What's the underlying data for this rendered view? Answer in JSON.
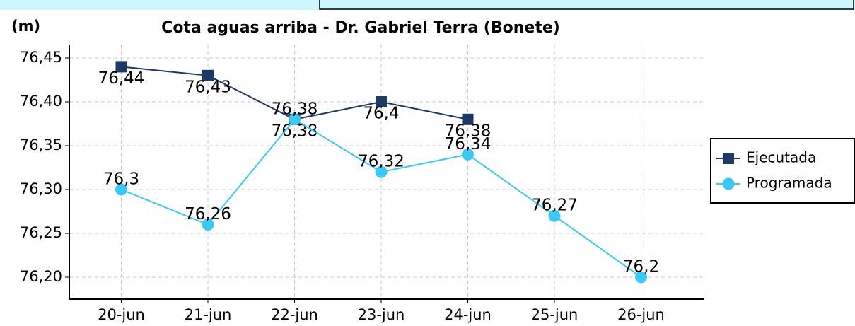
{
  "chart_data": {
    "type": "line",
    "title": "Cota aguas arriba - Dr. Gabriel Terra (Bonete)",
    "y_label": "(m)",
    "categories": [
      "20-jun",
      "21-jun",
      "22-jun",
      "23-jun",
      "24-jun",
      "25-jun",
      "26-jun"
    ],
    "series": [
      {
        "name": "Ejecutada",
        "color": "#1c3a63",
        "marker": "square",
        "values": [
          76.44,
          76.43,
          76.38,
          76.4,
          76.38,
          null,
          null
        ],
        "value_labels": [
          "76,44",
          "76,43",
          "76,38",
          "76,4",
          "76,38",
          null,
          null
        ]
      },
      {
        "name": "Programada",
        "color": "#3cc8f4",
        "marker": "circle",
        "values": [
          76.3,
          76.26,
          76.38,
          76.32,
          76.34,
          76.27,
          76.2
        ],
        "value_labels": [
          "76,3",
          "76,26",
          "76,38",
          "76,32",
          "76,34",
          "76,27",
          "76,2"
        ]
      }
    ],
    "ylim": [
      76.175,
      76.465
    ],
    "yticks": [
      {
        "value": 76.2,
        "label": "76,20"
      },
      {
        "value": 76.25,
        "label": "76,25"
      },
      {
        "value": 76.3,
        "label": "76,30"
      },
      {
        "value": 76.35,
        "label": "76,35"
      },
      {
        "value": 76.4,
        "label": "76,40"
      },
      {
        "value": 76.45,
        "label": "76,45"
      }
    ],
    "grid": true,
    "legend": "right"
  }
}
